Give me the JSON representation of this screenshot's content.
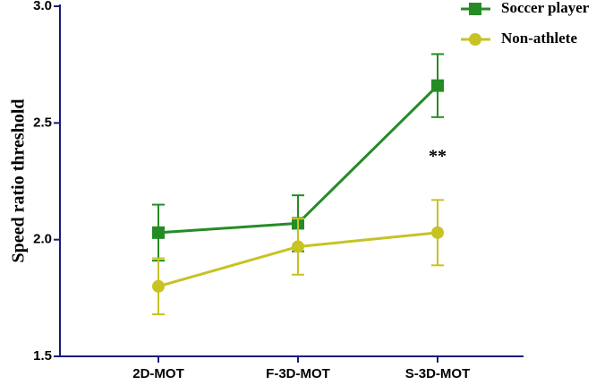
{
  "chart_data": {
    "type": "line",
    "y_label": "Speed ratio threshold",
    "categories": [
      "2D-MOT",
      "F-3D-MOT",
      "S-3D-MOT"
    ],
    "series": [
      {
        "name": "Soccer player",
        "color": "#258c25",
        "marker": "square",
        "values": [
          2.03,
          2.07,
          2.66
        ],
        "errors": [
          0.12,
          0.12,
          0.135
        ]
      },
      {
        "name": "Non-athlete",
        "color": "#c6c323",
        "marker": "circle",
        "values": [
          1.8,
          1.97,
          2.03
        ],
        "errors": [
          0.12,
          0.12,
          0.14
        ]
      }
    ],
    "annotation": "**",
    "ylim": [
      1.5,
      3.0
    ],
    "yticks": [
      1.5,
      {
        "value": 2.0,
        "label": "2.0"
      },
      2.5,
      {
        "value": 3.0,
        "label": "3.0"
      }
    ],
    "legend": "top-right"
  }
}
